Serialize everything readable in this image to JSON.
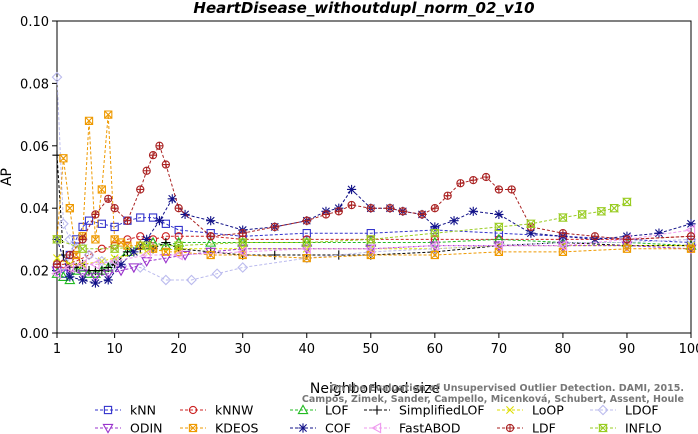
{
  "chart_data": {
    "type": "line",
    "title": "HeartDisease_withoutdupl_norm_02_v10",
    "xlabel": "Neighborhood size",
    "ylabel": "AP",
    "xlim": [
      1,
      100
    ],
    "ylim": [
      0.0,
      0.1
    ],
    "xticks": [
      1,
      10,
      20,
      30,
      40,
      50,
      60,
      70,
      80,
      90,
      100
    ],
    "yticks": [
      0.0,
      0.02,
      0.04,
      0.06,
      0.08,
      0.1
    ],
    "xtick_labels": [
      "1",
      "10",
      "20",
      "30",
      "40",
      "50",
      "60",
      "70",
      "80",
      "90",
      "100"
    ],
    "ytick_labels": [
      "0.00",
      "0.02",
      "0.04",
      "0.06",
      "0.08",
      "0.10"
    ],
    "grid": false,
    "legend_position": "bottom",
    "credit": "Campos, Zimek, Sander, Campello, Micenková, Schubert, Assent, Houle: On the Evaluation of Unsupervised Outlier Detection. DAMI, 2015.",
    "credit_line1": "On the Evaluation of Unsupervised Outlier Detection. DAMI, 2015.",
    "credit_line2": "Campos, Zimek, Sander, Campello, Micenková, Schubert, Assent, Houle",
    "series": [
      {
        "name": "kNN",
        "color": "#3333cc",
        "marker": "square",
        "x": [
          1,
          2,
          3,
          4,
          5,
          6,
          8,
          10,
          12,
          14,
          16,
          18,
          20,
          25,
          30,
          40,
          50,
          60,
          70,
          80,
          90,
          100
        ],
        "y": [
          0.021,
          0.019,
          0.025,
          0.03,
          0.034,
          0.036,
          0.035,
          0.034,
          0.036,
          0.037,
          0.037,
          0.035,
          0.033,
          0.032,
          0.031,
          0.032,
          0.032,
          0.033,
          0.032,
          0.031,
          0.03,
          0.029
        ]
      },
      {
        "name": "kNNW",
        "color": "#cc2222",
        "marker": "circle",
        "x": [
          1,
          2,
          4,
          6,
          8,
          10,
          12,
          14,
          16,
          18,
          20,
          25,
          30,
          40,
          50,
          60,
          70,
          80,
          90,
          100
        ],
        "y": [
          0.022,
          0.022,
          0.023,
          0.025,
          0.027,
          0.028,
          0.03,
          0.031,
          0.03,
          0.031,
          0.031,
          0.031,
          0.03,
          0.03,
          0.03,
          0.03,
          0.03,
          0.03,
          0.03,
          0.031
        ]
      },
      {
        "name": "LOF",
        "color": "#22bb22",
        "marker": "triangle",
        "x": [
          1,
          2,
          3,
          4,
          5,
          6,
          7,
          8,
          9,
          10,
          12,
          14,
          16,
          18,
          20,
          25,
          30,
          40,
          50,
          60,
          70,
          80,
          90,
          100
        ],
        "y": [
          0.019,
          0.018,
          0.017,
          0.02,
          0.021,
          0.019,
          0.019,
          0.02,
          0.021,
          0.023,
          0.026,
          0.028,
          0.029,
          0.028,
          0.029,
          0.029,
          0.029,
          0.029,
          0.029,
          0.029,
          0.03,
          0.029,
          0.029,
          0.028
        ]
      },
      {
        "name": "SimplifiedLOF",
        "color": "#000000",
        "marker": "plus",
        "x": [
          1,
          2,
          3,
          4,
          5,
          6,
          7,
          8,
          9,
          10,
          12,
          14,
          16,
          18,
          20,
          25,
          30,
          35,
          40,
          45,
          50,
          60,
          70,
          80,
          90,
          100
        ],
        "y": [
          0.057,
          0.025,
          0.021,
          0.021,
          0.022,
          0.02,
          0.02,
          0.02,
          0.021,
          0.022,
          0.026,
          0.027,
          0.027,
          0.029,
          0.027,
          0.026,
          0.025,
          0.025,
          0.025,
          0.025,
          0.025,
          0.026,
          0.028,
          0.029,
          0.028,
          0.028
        ]
      },
      {
        "name": "LoOP",
        "color": "#dddd00",
        "marker": "x",
        "x": [
          1,
          3,
          5,
          8,
          10,
          15,
          20,
          30,
          40,
          50,
          60,
          70,
          80,
          90,
          100
        ],
        "y": [
          0.024,
          0.022,
          0.022,
          0.023,
          0.024,
          0.026,
          0.027,
          0.027,
          0.027,
          0.027,
          0.027,
          0.028,
          0.028,
          0.028,
          0.028
        ]
      },
      {
        "name": "LDOF",
        "color": "#bbbbee",
        "marker": "diamond",
        "x": [
          1,
          2,
          3,
          4,
          5,
          6,
          8,
          10,
          14,
          18,
          22,
          26,
          30,
          40,
          50,
          60,
          70,
          80,
          90,
          100
        ],
        "y": [
          0.082,
          0.035,
          0.03,
          0.027,
          0.03,
          0.025,
          0.023,
          0.022,
          0.021,
          0.017,
          0.017,
          0.019,
          0.021,
          0.024,
          0.026,
          0.027,
          0.028,
          0.029,
          0.029,
          0.03
        ]
      },
      {
        "name": "ODIN",
        "color": "#9933cc",
        "marker": "triangle-down",
        "x": [
          1,
          3,
          5,
          7,
          9,
          11,
          13,
          15,
          18,
          21,
          25,
          30,
          40,
          50,
          60,
          70,
          80,
          90,
          100
        ],
        "y": [
          0.02,
          0.02,
          0.019,
          0.018,
          0.019,
          0.02,
          0.021,
          0.023,
          0.024,
          0.025,
          0.026,
          0.027,
          0.027,
          0.027,
          0.028,
          0.028,
          0.028,
          0.028,
          0.027
        ]
      },
      {
        "name": "KDEOS",
        "color": "#ee9900",
        "marker": "square-x",
        "x": [
          1,
          2,
          3,
          4,
          5,
          6,
          7,
          8,
          9,
          10,
          11,
          12,
          14,
          16,
          18,
          20,
          25,
          30,
          40,
          50,
          60,
          70,
          80,
          90,
          100
        ],
        "y": [
          0.03,
          0.056,
          0.04,
          0.025,
          0.031,
          0.068,
          0.03,
          0.046,
          0.07,
          0.03,
          0.029,
          0.028,
          0.028,
          0.027,
          0.026,
          0.026,
          0.025,
          0.025,
          0.024,
          0.025,
          0.025,
          0.026,
          0.026,
          0.027,
          0.027
        ]
      },
      {
        "name": "COF",
        "color": "#111188",
        "marker": "star",
        "x": [
          1,
          3,
          5,
          7,
          9,
          11,
          13,
          15,
          17,
          19,
          21,
          25,
          30,
          35,
          40,
          43,
          45,
          47,
          50,
          53,
          55,
          58,
          60,
          63,
          66,
          70,
          75,
          80,
          85,
          90,
          95,
          100
        ],
        "y": [
          0.03,
          0.018,
          0.017,
          0.016,
          0.017,
          0.022,
          0.026,
          0.03,
          0.036,
          0.043,
          0.038,
          0.036,
          0.033,
          0.034,
          0.036,
          0.039,
          0.04,
          0.046,
          0.04,
          0.04,
          0.039,
          0.038,
          0.034,
          0.036,
          0.039,
          0.038,
          0.032,
          0.031,
          0.03,
          0.031,
          0.032,
          0.035
        ]
      },
      {
        "name": "FastABOD",
        "color": "#ee99ee",
        "marker": "triangle-left",
        "x": [
          1,
          3,
          5,
          7,
          10,
          15,
          20,
          30,
          40,
          50,
          60,
          70,
          80,
          90,
          100
        ],
        "y": [
          0.019,
          0.021,
          0.022,
          0.022,
          0.023,
          0.025,
          0.025,
          0.026,
          0.027,
          0.027,
          0.028,
          0.028,
          0.028,
          0.03,
          0.033
        ]
      },
      {
        "name": "LDF",
        "color": "#aa2222",
        "marker": "circle-plus",
        "x": [
          1,
          3,
          5,
          7,
          9,
          10,
          12,
          14,
          15,
          16,
          17,
          18,
          20,
          25,
          30,
          35,
          40,
          43,
          45,
          47,
          50,
          53,
          55,
          58,
          60,
          62,
          64,
          66,
          68,
          70,
          72,
          75,
          80,
          85,
          90,
          100
        ],
        "y": [
          0.022,
          0.025,
          0.03,
          0.038,
          0.043,
          0.04,
          0.036,
          0.046,
          0.052,
          0.057,
          0.06,
          0.054,
          0.04,
          0.031,
          0.032,
          0.034,
          0.036,
          0.038,
          0.039,
          0.041,
          0.04,
          0.04,
          0.039,
          0.038,
          0.04,
          0.044,
          0.048,
          0.049,
          0.05,
          0.046,
          0.046,
          0.034,
          0.032,
          0.031,
          0.03,
          0.031
        ]
      },
      {
        "name": "INFLO",
        "color": "#99cc22",
        "marker": "hourglass",
        "x": [
          1,
          5,
          10,
          15,
          20,
          30,
          40,
          50,
          60,
          70,
          75,
          80,
          83,
          86,
          88,
          90
        ],
        "y": [
          0.03,
          0.027,
          0.027,
          0.028,
          0.028,
          0.029,
          0.029,
          0.03,
          0.032,
          0.034,
          0.035,
          0.037,
          0.038,
          0.039,
          0.04,
          0.042
        ]
      }
    ]
  }
}
